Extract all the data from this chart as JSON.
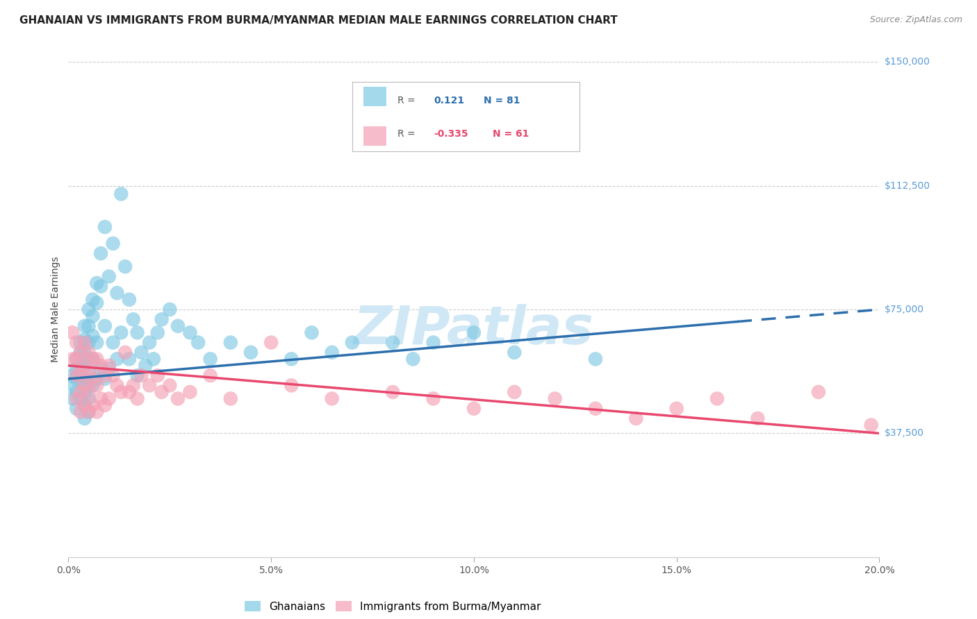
{
  "title": "GHANAIAN VS IMMIGRANTS FROM BURMA/MYANMAR MEDIAN MALE EARNINGS CORRELATION CHART",
  "source": "Source: ZipAtlas.com",
  "ylabel": "Median Male Earnings",
  "yticks": [
    0,
    37500,
    75000,
    112500,
    150000
  ],
  "ytick_labels": [
    "",
    "$37,500",
    "$75,000",
    "$112,500",
    "$150,000"
  ],
  "xmin": 0.0,
  "xmax": 0.2,
  "ymin": 0,
  "ymax": 150000,
  "blue_R": 0.121,
  "blue_N": 81,
  "pink_R": -0.335,
  "pink_N": 61,
  "blue_color": "#7ec8e3",
  "pink_color": "#f4a0b5",
  "blue_line_color": "#2c6fad",
  "pink_line_color": "#e8486e",
  "watermark": "ZIPatlas",
  "watermark_color": "#d0e8f5",
  "legend_label_blue": "Ghanaians",
  "legend_label_pink": "Immigrants from Burma/Myanmar",
  "blue_scatter_x": [
    0.001,
    0.001,
    0.001,
    0.002,
    0.002,
    0.002,
    0.002,
    0.002,
    0.003,
    0.003,
    0.003,
    0.003,
    0.003,
    0.004,
    0.004,
    0.004,
    0.004,
    0.004,
    0.004,
    0.004,
    0.004,
    0.005,
    0.005,
    0.005,
    0.005,
    0.005,
    0.005,
    0.005,
    0.005,
    0.006,
    0.006,
    0.006,
    0.006,
    0.006,
    0.007,
    0.007,
    0.007,
    0.007,
    0.008,
    0.008,
    0.008,
    0.009,
    0.009,
    0.009,
    0.01,
    0.01,
    0.011,
    0.011,
    0.012,
    0.012,
    0.013,
    0.013,
    0.014,
    0.015,
    0.015,
    0.016,
    0.017,
    0.017,
    0.018,
    0.019,
    0.02,
    0.021,
    0.022,
    0.023,
    0.025,
    0.027,
    0.03,
    0.032,
    0.035,
    0.04,
    0.045,
    0.055,
    0.06,
    0.065,
    0.07,
    0.08,
    0.085,
    0.09,
    0.1,
    0.11,
    0.13
  ],
  "blue_scatter_y": [
    55000,
    52000,
    48000,
    60000,
    57000,
    54000,
    50000,
    45000,
    65000,
    62000,
    58000,
    54000,
    48000,
    70000,
    66000,
    62000,
    58000,
    54000,
    50000,
    46000,
    42000,
    75000,
    70000,
    65000,
    60000,
    56000,
    52000,
    48000,
    44000,
    78000,
    73000,
    67000,
    60000,
    52000,
    83000,
    77000,
    65000,
    54000,
    92000,
    82000,
    57000,
    100000,
    70000,
    54000,
    85000,
    57000,
    95000,
    65000,
    80000,
    60000,
    110000,
    68000,
    88000,
    78000,
    60000,
    72000,
    68000,
    55000,
    62000,
    58000,
    65000,
    60000,
    68000,
    72000,
    75000,
    70000,
    68000,
    65000,
    60000,
    65000,
    62000,
    60000,
    68000,
    62000,
    65000,
    65000,
    60000,
    65000,
    68000,
    62000,
    60000
  ],
  "pink_scatter_x": [
    0.001,
    0.001,
    0.002,
    0.002,
    0.002,
    0.002,
    0.003,
    0.003,
    0.003,
    0.003,
    0.004,
    0.004,
    0.004,
    0.004,
    0.005,
    0.005,
    0.005,
    0.005,
    0.006,
    0.006,
    0.006,
    0.007,
    0.007,
    0.007,
    0.008,
    0.008,
    0.009,
    0.009,
    0.01,
    0.01,
    0.011,
    0.012,
    0.013,
    0.014,
    0.015,
    0.016,
    0.017,
    0.018,
    0.02,
    0.022,
    0.023,
    0.025,
    0.027,
    0.03,
    0.035,
    0.04,
    0.05,
    0.055,
    0.065,
    0.08,
    0.09,
    0.1,
    0.11,
    0.12,
    0.13,
    0.14,
    0.15,
    0.16,
    0.17,
    0.185,
    0.198
  ],
  "pink_scatter_y": [
    68000,
    60000,
    65000,
    60000,
    55000,
    48000,
    62000,
    56000,
    50000,
    44000,
    65000,
    58000,
    52000,
    46000,
    62000,
    56000,
    50000,
    44000,
    60000,
    54000,
    46000,
    60000,
    52000,
    44000,
    58000,
    48000,
    55000,
    46000,
    58000,
    48000,
    55000,
    52000,
    50000,
    62000,
    50000,
    52000,
    48000,
    55000,
    52000,
    55000,
    50000,
    52000,
    48000,
    50000,
    55000,
    48000,
    65000,
    52000,
    48000,
    50000,
    48000,
    45000,
    50000,
    48000,
    45000,
    42000,
    45000,
    48000,
    42000,
    50000,
    40000
  ],
  "title_fontsize": 11,
  "source_fontsize": 9,
  "axis_label_fontsize": 10,
  "tick_label_fontsize": 10,
  "legend_fontsize": 11,
  "watermark_fontsize": 55,
  "background_color": "#ffffff",
  "grid_color": "#cccccc",
  "right_tick_color": "#5b9bd5"
}
